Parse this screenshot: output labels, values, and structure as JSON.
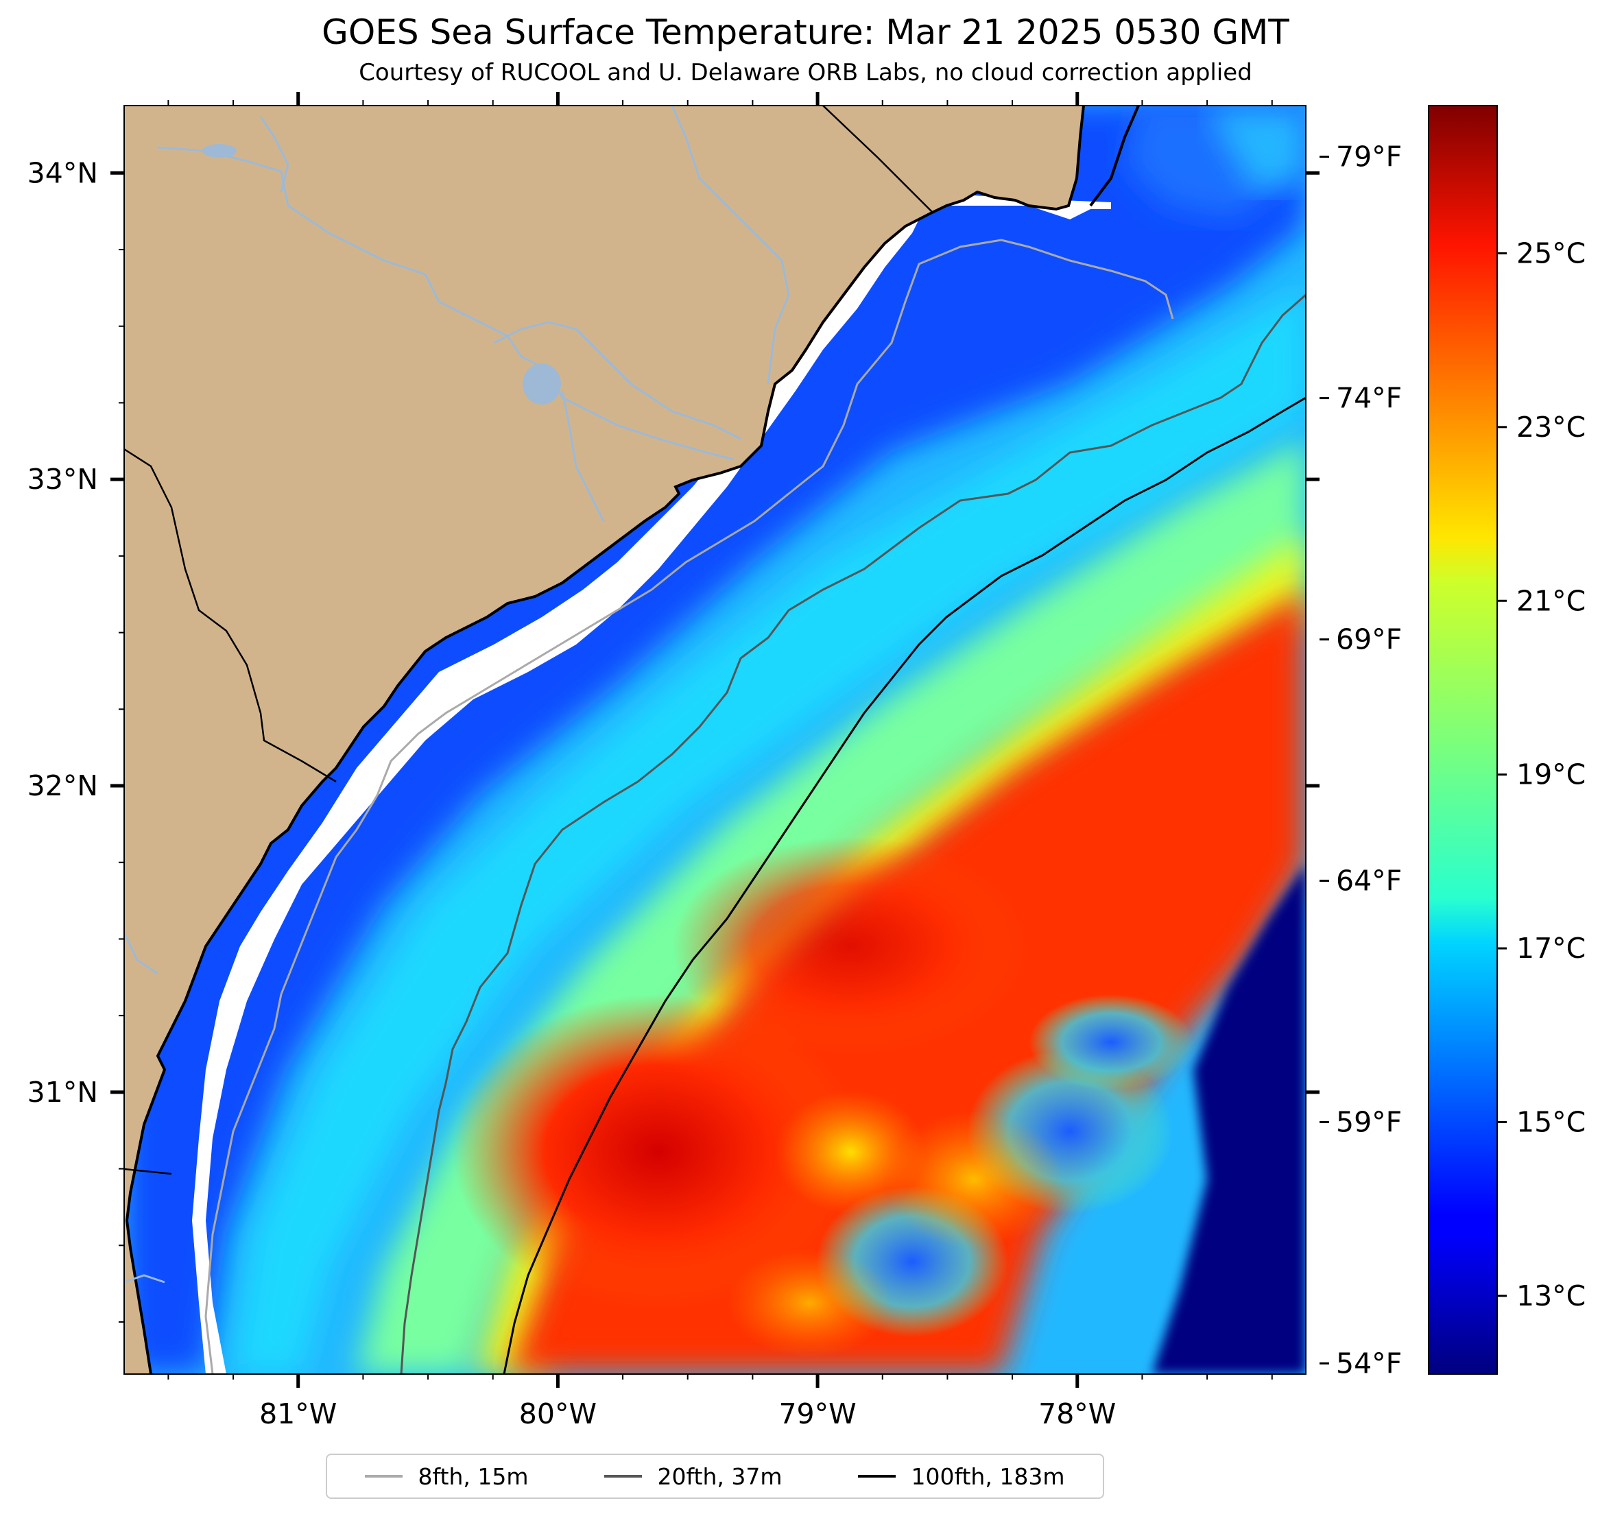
{
  "title": "GOES Sea Surface Temperature: Mar 21 2025 0530 GMT",
  "subtitle": "Courtesy of RUCOOL and U. Delaware ORB Labs, no cloud correction applied",
  "map": {
    "lon_range": [
      -81.67,
      -77.12
    ],
    "lat_range": [
      30.08,
      34.22
    ],
    "lat_ticks": [
      {
        "value": 34,
        "label": "34°N"
      },
      {
        "value": 33,
        "label": "33°N"
      },
      {
        "value": 32,
        "label": "32°N"
      },
      {
        "value": 31,
        "label": "31°N"
      }
    ],
    "lon_ticks": [
      {
        "value": -81,
        "label": "81°W"
      },
      {
        "value": -80,
        "label": "80°W"
      },
      {
        "value": -79,
        "label": "79°W"
      },
      {
        "value": -78,
        "label": "78°W"
      }
    ],
    "fahrenheit_ticks": [
      {
        "value": 79,
        "label": "79°F"
      },
      {
        "value": 74,
        "label": "74°F"
      },
      {
        "value": 69,
        "label": "69°F"
      },
      {
        "value": 64,
        "label": "64°F"
      },
      {
        "value": 59,
        "label": "59°F"
      },
      {
        "value": 54,
        "label": "54°F"
      }
    ],
    "land_color": "#d2b48c",
    "river_color": "#9db9d6"
  },
  "colorbar": {
    "min": 12.1,
    "max": 26.7,
    "colormap": "jet",
    "ticks": [
      {
        "value": 25,
        "label": "25°C"
      },
      {
        "value": 23,
        "label": "23°C"
      },
      {
        "value": 21,
        "label": "21°C"
      },
      {
        "value": 19,
        "label": "19°C"
      },
      {
        "value": 17,
        "label": "17°C"
      },
      {
        "value": 15,
        "label": "15°C"
      },
      {
        "value": 13,
        "label": "13°C"
      }
    ]
  },
  "legend": [
    {
      "label": "8fth, 15m",
      "color": "#aaaaaa"
    },
    {
      "label": "20fth, 37m",
      "color": "#555555"
    },
    {
      "label": "100fth, 183m",
      "color": "#000000"
    }
  ]
}
